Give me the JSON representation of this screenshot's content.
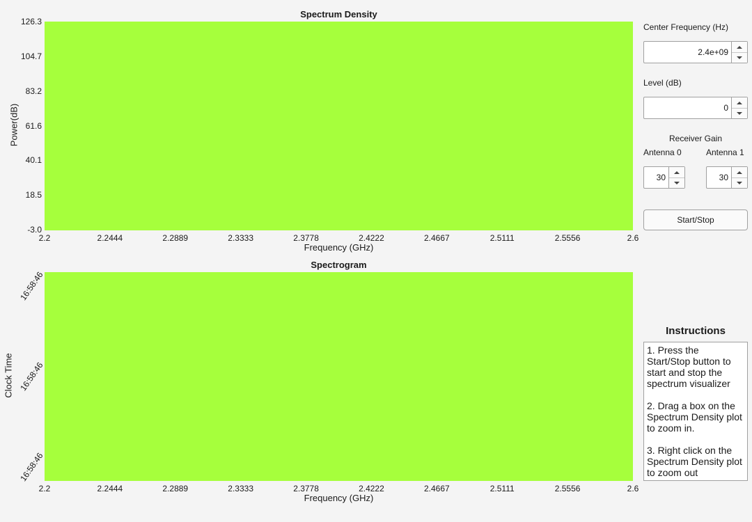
{
  "spectrum": {
    "title": "Spectrum Density",
    "ylabel": "Power(dB)",
    "xlabel": "Frequency (GHz)",
    "yticks": [
      "126.3",
      "104.7",
      "83.2",
      "61.6",
      "40.1",
      "18.5",
      "-3.0"
    ],
    "xticks": [
      "2.2",
      "2.2444",
      "2.2889",
      "2.3333",
      "2.3778",
      "2.4222",
      "2.4667",
      "2.5111",
      "2.5556",
      "2.6"
    ],
    "fill_color": "#a6ff3c"
  },
  "spectrogram": {
    "title": "Spectrogram",
    "ylabel": "Clock Time",
    "xlabel": "Frequency (GHz)",
    "yticks": [
      "16:58:46",
      "16:58:46",
      "16:58:46"
    ],
    "xticks": [
      "2.2",
      "2.2444",
      "2.2889",
      "2.3333",
      "2.3778",
      "2.4222",
      "2.4667",
      "2.5111",
      "2.5556",
      "2.6"
    ],
    "fill_color": "#a6ff3c"
  },
  "controls": {
    "center_freq_label": "Center Frequency (Hz)",
    "center_freq_value": "2.4e+09",
    "level_label": "Level (dB)",
    "level_value": "0",
    "receiver_gain_label": "Receiver Gain",
    "antenna0_label": "Antenna 0",
    "antenna0_value": "30",
    "antenna1_label": "Antenna 1",
    "antenna1_value": "30",
    "start_stop_label": "Start/Stop"
  },
  "instructions": {
    "title": "Instructions",
    "steps": [
      "1. Press the Start/Stop button to start and stop the spectrum visualizer",
      "2. Drag a box on the Spectrum Density plot to zoom in.",
      "3. Right click on the Spectrum Density plot to zoom out"
    ]
  }
}
